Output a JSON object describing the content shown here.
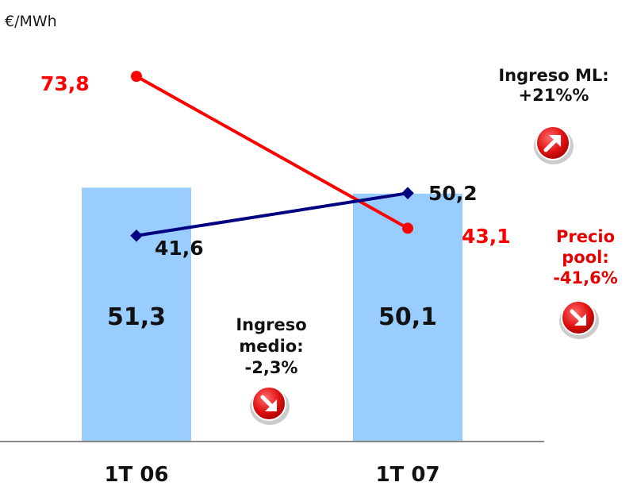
{
  "chart_data": {
    "type": "bar",
    "unit_label": "€/MWh",
    "categories": [
      "1T 06",
      "1T 07"
    ],
    "bar_values": [
      51.3,
      50.1
    ],
    "bar_labels": [
      "51,3",
      "50,1"
    ],
    "lines": [
      {
        "values": [
          41.6,
          50.2
        ],
        "labels": [
          "41,6",
          "50,2"
        ],
        "color": "#000080"
      },
      {
        "values": [
          73.8,
          43.1
        ],
        "labels": [
          "73,8",
          "43,1"
        ],
        "color": "#ff0000"
      }
    ],
    "ylim": [
      0,
      80
    ],
    "grid": false,
    "annotations": [
      {
        "lines": [
          "Ingreso ML:",
          "+21%%"
        ],
        "color": "#111111",
        "trend": "up"
      },
      {
        "lines": [
          "Precio",
          "pool:",
          "-41,6%"
        ],
        "color": "#e60000",
        "trend": "down"
      },
      {
        "lines": [
          "Ingreso",
          "medio:",
          "-2,3%"
        ],
        "color": "#111111",
        "trend": "down"
      }
    ],
    "colors": {
      "bar": "#99ccff",
      "axis": "#888888"
    }
  }
}
